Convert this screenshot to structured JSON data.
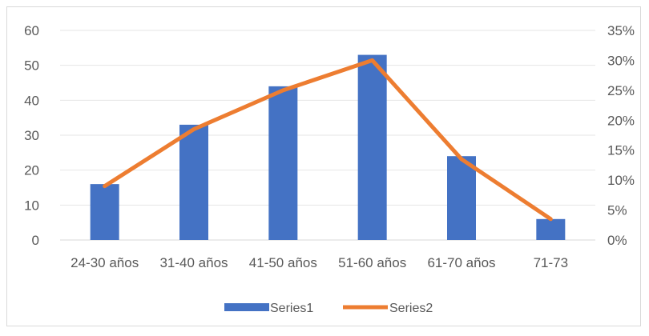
{
  "chart_data": {
    "type": "bar",
    "categories": [
      "24-30 años",
      "31-40 años",
      "41-50 años",
      "51-60 años",
      "61-70 años",
      "71-73"
    ],
    "series": [
      {
        "name": "Series1",
        "type": "bar",
        "axis": "left",
        "color": "#4472C4",
        "values": [
          16,
          33,
          44,
          53,
          24,
          6
        ]
      },
      {
        "name": "Series2",
        "type": "line",
        "axis": "right",
        "color": "#ED7D31",
        "values": [
          0.09,
          0.185,
          0.25,
          0.3,
          0.135,
          0.035
        ]
      }
    ],
    "y_left": {
      "ylim": [
        0,
        60
      ],
      "ticks": [
        "0",
        "10",
        "20",
        "30",
        "40",
        "50",
        "60"
      ]
    },
    "y_right": {
      "ylim": [
        0,
        0.35
      ],
      "ticks": [
        "0%",
        "5%",
        "10%",
        "15%",
        "20%",
        "25%",
        "30%",
        "35%"
      ]
    },
    "title": "",
    "xlabel": "",
    "ylabel": "",
    "grid": true,
    "legend": "bottom"
  }
}
